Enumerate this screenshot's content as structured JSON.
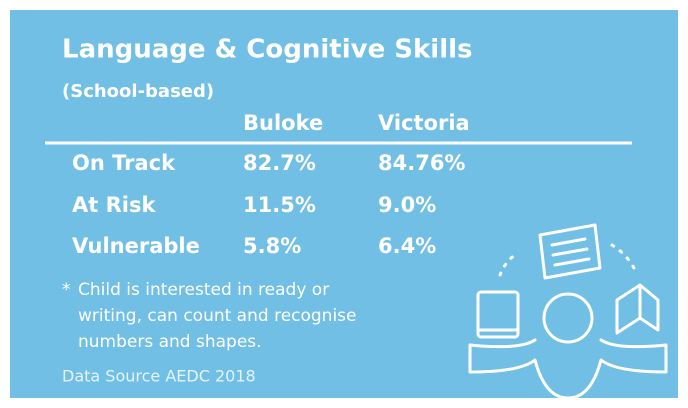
{
  "header": {
    "title": "Language & Cognitive Skills",
    "subtitle": "(School-based)"
  },
  "table": {
    "columns": [
      "Buloke",
      "Victoria"
    ],
    "rows": [
      [
        "On Track",
        "82.7%",
        "84.76%"
      ],
      [
        "At Risk",
        "11.5%",
        "9.0%"
      ],
      [
        "Vulnerable",
        "5.8%",
        "6.4%"
      ]
    ]
  },
  "note": {
    "marker": "*",
    "lines": [
      "Child is interested in ready or",
      "writing, can count and recognise",
      "numbers and shapes."
    ]
  },
  "source": "Data Source AEDC 2018"
}
